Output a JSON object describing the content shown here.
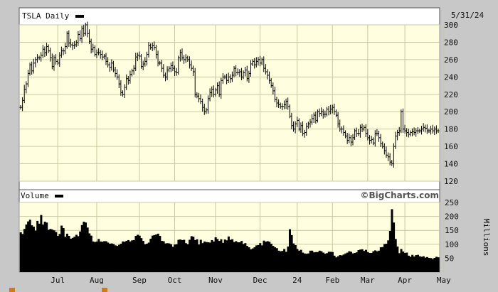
{
  "header": {
    "ticker_label": "TSLA Daily",
    "date": "5/31/24"
  },
  "volume_header": {
    "label": "Volume"
  },
  "watermark": "©BigCharts.com",
  "volume_units": "Millions",
  "colors": {
    "background": "#c8c8c8",
    "plot_bg": "#ffffe0",
    "grid": "#c8c8a0",
    "bars": "#000000"
  },
  "chart_data": [
    {
      "type": "ohlc",
      "title": "TSLA Daily",
      "y_ticks": [
        120,
        140,
        160,
        180,
        200,
        220,
        240,
        260,
        280,
        300
      ],
      "ylim": [
        120,
        300
      ],
      "x_tick_labels": [
        "Jul",
        "Aug",
        "Sep",
        "Oct",
        "Nov",
        "Dec",
        "24",
        "Feb",
        "Mar",
        "Apr",
        "May"
      ],
      "x_tick_index": [
        20,
        41,
        64,
        83,
        105,
        129,
        149,
        168,
        187,
        207,
        228
      ],
      "closes": [
        205,
        213,
        226,
        232,
        244,
        254,
        247,
        256,
        260,
        262,
        262,
        265,
        272,
        268,
        275,
        270,
        262,
        252,
        262,
        258,
        256,
        265,
        270,
        270,
        275,
        290,
        279,
        277,
        276,
        277,
        280,
        289,
        284,
        296,
        290,
        300,
        290,
        281,
        272,
        274,
        266,
        268,
        268,
        266,
        263,
        264,
        258,
        254,
        251,
        256,
        248,
        244,
        240,
        232,
        222,
        220,
        228,
        238,
        236,
        243,
        247,
        250,
        263,
        265,
        264,
        252,
        255,
        258,
        266,
        276,
        274,
        276,
        274,
        266,
        256,
        256,
        250,
        242,
        240,
        248,
        250,
        253,
        250,
        246,
        245,
        262,
        268,
        262,
        260,
        262,
        260,
        254,
        250,
        246,
        220,
        218,
        215,
        212,
        205,
        200,
        202,
        215,
        222,
        226,
        220,
        225,
        230,
        220,
        236,
        240,
        240,
        236,
        240,
        238,
        242,
        250,
        245,
        245,
        246,
        240,
        245,
        248,
        238,
        244,
        255,
        258,
        254,
        258,
        260,
        256,
        260,
        250,
        246,
        242,
        236,
        230,
        224,
        214,
        210,
        208,
        206,
        206,
        208,
        212,
        206,
        195,
        184,
        180,
        186,
        190,
        180,
        184,
        175,
        176,
        183,
        186,
        188,
        192,
        196,
        190,
        200,
        198,
        200,
        197,
        197,
        203,
        200,
        203,
        205,
        200,
        196,
        186,
        180,
        180,
        176,
        172,
        167,
        170,
        165,
        170,
        178,
        175,
        175,
        182,
        180,
        182,
        175,
        170,
        167,
        168,
        164,
        175,
        175,
        170,
        163,
        160,
        155,
        150,
        148,
        142,
        140,
        160,
        172,
        176,
        178,
        200,
        180,
        178,
        176,
        174,
        176,
        177,
        176,
        178,
        178,
        178,
        180,
        182,
        181,
        178,
        178,
        180,
        178,
        180,
        178,
        178
      ],
      "volume_yticks": [
        50,
        100,
        150,
        200,
        250
      ],
      "volume_ylim": [
        0,
        250
      ],
      "volumes": [
        143,
        137,
        155,
        171,
        182,
        188,
        168,
        163,
        149,
        184,
        174,
        205,
        171,
        181,
        178,
        152,
        155,
        153,
        150,
        144,
        130,
        137,
        167,
        158,
        127,
        138,
        130,
        120,
        123,
        127,
        134,
        129,
        146,
        169,
        181,
        178,
        160,
        139,
        131,
        110,
        108,
        110,
        119,
        110,
        109,
        111,
        111,
        106,
        102,
        103,
        101,
        96,
        94,
        98,
        102,
        110,
        109,
        112,
        115,
        110,
        114,
        115,
        130,
        134,
        131,
        122,
        112,
        100,
        102,
        106,
        120,
        131,
        133,
        135,
        138,
        130,
        112,
        111,
        103,
        104,
        103,
        100,
        91,
        99,
        100,
        116,
        117,
        115,
        116,
        104,
        100,
        116,
        129,
        127,
        115,
        118,
        99,
        116,
        104,
        110,
        108,
        107,
        106,
        115,
        110,
        125,
        119,
        112,
        118,
        105,
        117,
        114,
        128,
        116,
        118,
        108,
        111,
        107,
        107,
        112,
        101,
        104,
        94,
        89,
        82,
        85,
        89,
        96,
        97,
        104,
        96,
        113,
        109,
        111,
        109,
        102,
        94,
        89,
        86,
        77,
        75,
        76,
        83,
        73,
        92,
        154,
        133,
        103,
        97,
        83,
        77,
        80,
        70,
        67,
        66,
        67,
        77,
        77,
        71,
        72,
        72,
        77,
        75,
        70,
        66,
        68,
        73,
        73,
        72,
        59,
        53,
        57,
        61,
        60,
        63,
        67,
        70,
        75,
        73,
        67,
        69,
        71,
        79,
        81,
        82,
        76,
        80,
        72,
        69,
        69,
        75,
        78,
        75,
        77,
        89,
        90,
        101,
        102,
        114,
        148,
        226,
        178,
        119,
        92,
        68,
        83,
        74,
        69,
        70,
        59,
        55,
        62,
        56,
        61,
        62,
        57,
        55,
        57,
        52,
        54,
        51,
        50,
        47,
        51,
        55,
        53
      ]
    }
  ]
}
